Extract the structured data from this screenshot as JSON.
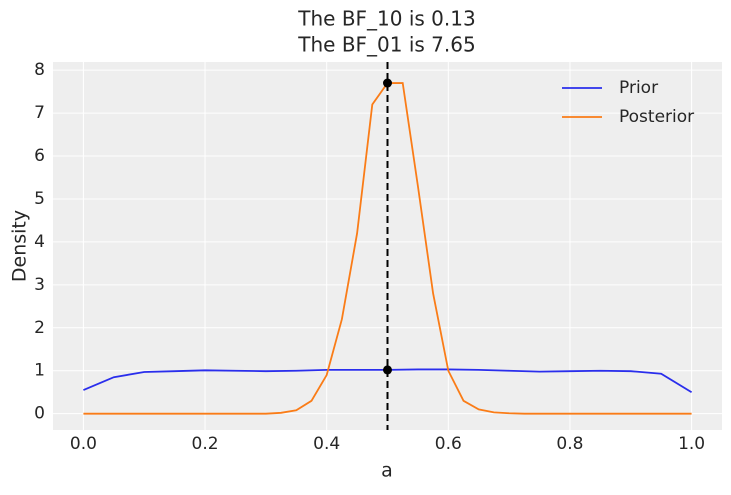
{
  "chart_data": {
    "type": "line",
    "title": [
      "The BF_10 is 0.13",
      "The BF_01 is 7.65"
    ],
    "xlabel": "a",
    "ylabel": "Density",
    "xlim": [
      -0.05,
      1.05
    ],
    "ylim": [
      -0.38,
      8.19
    ],
    "xticks": [
      {
        "value": 0,
        "label": "0.0"
      },
      0.2,
      0.4,
      0.6,
      0.8,
      {
        "value": 1,
        "label": "1.0"
      }
    ],
    "yticks": [
      0,
      1,
      2,
      3,
      4,
      5,
      6,
      7,
      8
    ],
    "grid": true,
    "legend": "upper right",
    "series": [
      {
        "name": "Prior",
        "color": "#2a2eec",
        "x": [
          0,
          0.05,
          0.1,
          0.15,
          0.2,
          0.25,
          0.3,
          0.35,
          0.4,
          0.45,
          0.5,
          0.55,
          0.6,
          0.65,
          0.7,
          0.75,
          0.8,
          0.85,
          0.9,
          0.95,
          1
        ],
        "values": [
          0.55,
          0.85,
          0.97,
          0.99,
          1.01,
          1.0,
          0.99,
          1.0,
          1.02,
          1.02,
          1.02,
          1.03,
          1.03,
          1.02,
          1.0,
          0.98,
          0.99,
          1.0,
          0.99,
          0.93,
          0.5
        ]
      },
      {
        "name": "Posterior",
        "color": "#fa7c17",
        "x": [
          0,
          0.025,
          0.05,
          0.075,
          0.1,
          0.125,
          0.15,
          0.175,
          0.2,
          0.225,
          0.25,
          0.275,
          0.3,
          0.325,
          0.35,
          0.375,
          0.4,
          0.425,
          0.45,
          0.475,
          0.5,
          0.525,
          0.55,
          0.575,
          0.6,
          0.625,
          0.65,
          0.675,
          0.7,
          0.725,
          0.75,
          0.775,
          0.8,
          0.825,
          0.85,
          0.875,
          0.9,
          0.925,
          0.95,
          0.975,
          1
        ],
        "values": [
          0,
          0,
          0,
          0,
          0,
          0,
          0,
          0,
          0,
          0,
          0,
          0,
          0,
          0.02,
          0.08,
          0.3,
          0.9,
          2.2,
          4.2,
          7.2,
          7.7,
          7.7,
          5.3,
          2.8,
          1.0,
          0.3,
          0.1,
          0.03,
          0.01,
          0,
          0,
          0,
          0,
          0,
          0,
          0,
          0,
          0,
          0,
          0,
          0
        ]
      }
    ],
    "vline": 0.5,
    "markers": {
      "x": [
        0.5,
        0.5
      ],
      "values": [
        7.7,
        1.02
      ]
    }
  }
}
